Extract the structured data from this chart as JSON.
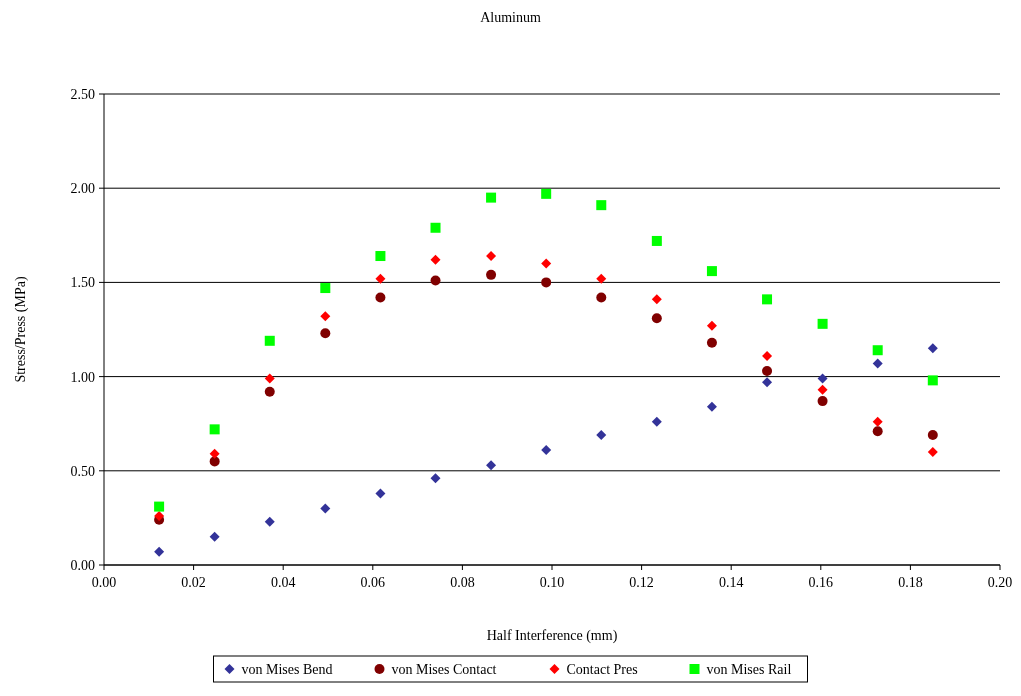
{
  "chart_data": {
    "type": "scatter",
    "title": "Aluminum",
    "xlabel": "Half Interference (mm)",
    "ylabel": "Stress/Press (MPa)",
    "x": [
      0.0123,
      0.0247,
      0.037,
      0.0494,
      0.0617,
      0.074,
      0.0864,
      0.0987,
      0.111,
      0.1234,
      0.1357,
      0.148,
      0.1604,
      0.1727,
      0.185
    ],
    "series": [
      {
        "name": "von Mises Bend",
        "color": "#333399",
        "marker": "diamond",
        "values": [
          0.07,
          0.15,
          0.23,
          0.3,
          0.38,
          0.46,
          0.53,
          0.61,
          0.69,
          0.76,
          0.84,
          0.97,
          0.99,
          1.07,
          1.15
        ]
      },
      {
        "name": "von Mises Contact",
        "color": "#800000",
        "marker": "circle",
        "values": [
          0.24,
          0.55,
          0.92,
          1.23,
          1.42,
          1.51,
          1.54,
          1.5,
          1.42,
          1.31,
          1.18,
          1.03,
          0.87,
          0.71,
          0.69
        ]
      },
      {
        "name": "Contact Pres",
        "color": "#ff0000",
        "marker": "diamond",
        "values": [
          0.26,
          0.59,
          0.99,
          1.32,
          1.52,
          1.62,
          1.64,
          1.6,
          1.52,
          1.41,
          1.27,
          1.11,
          0.93,
          0.76,
          0.6
        ]
      },
      {
        "name": "von Mises Rail",
        "color": "#00ff00",
        "marker": "square",
        "values": [
          0.31,
          0.72,
          1.19,
          1.47,
          1.64,
          1.79,
          1.95,
          1.97,
          1.91,
          1.72,
          1.56,
          1.41,
          1.28,
          1.14,
          0.98
        ]
      }
    ],
    "xlim": [
      0,
      0.2
    ],
    "ylim": [
      0,
      2.5
    ],
    "xticks": [
      {
        "value": 0,
        "label": "0.00"
      },
      {
        "value": 0.02,
        "label": "0.02"
      },
      {
        "value": 0.04,
        "label": "0.04"
      },
      {
        "value": 0.06,
        "label": "0.06"
      },
      {
        "value": 0.08,
        "label": "0.08"
      },
      {
        "value": 0.1,
        "label": "0.10"
      },
      {
        "value": 0.12,
        "label": "0.12"
      },
      {
        "value": 0.14,
        "label": "0.14"
      },
      {
        "value": 0.16,
        "label": "0.16"
      },
      {
        "value": 0.18,
        "label": "0.18"
      },
      {
        "value": 0.2,
        "label": "0.20"
      }
    ],
    "yticks": [
      {
        "value": 0,
        "label": "0.00"
      },
      {
        "value": 0.5,
        "label": "0.50"
      },
      {
        "value": 1,
        "label": "1.00"
      },
      {
        "value": 1.5,
        "label": "1.50"
      },
      {
        "value": 2,
        "label": "2.00"
      },
      {
        "value": 2.5,
        "label": "2.50"
      }
    ],
    "grid": "y",
    "legend": "bottom"
  }
}
